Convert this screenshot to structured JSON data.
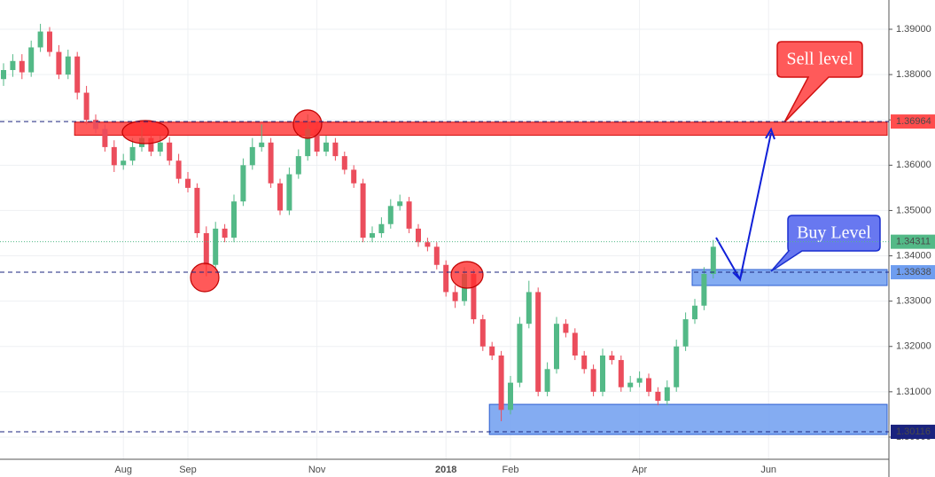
{
  "chart_data": {
    "type": "candlestick",
    "categories": [
      null,
      null,
      null,
      null,
      null,
      null,
      null,
      null,
      null,
      null,
      null,
      null,
      null,
      "Aug",
      null,
      null,
      null,
      null,
      null,
      null,
      "Sep",
      null,
      null,
      null,
      null,
      null,
      null,
      null,
      null,
      null,
      null,
      null,
      null,
      null,
      "Nov",
      null,
      null,
      null,
      null,
      null,
      null,
      null,
      null,
      null,
      null,
      null,
      null,
      null,
      "2018",
      null,
      null,
      null,
      null,
      null,
      null,
      "Feb",
      null,
      null,
      null,
      null,
      null,
      null,
      null,
      null,
      null,
      null,
      null,
      null,
      null,
      "Apr",
      null,
      null,
      null,
      null,
      null,
      null,
      null,
      null,
      null,
      null,
      null,
      null,
      null,
      "Jun"
    ],
    "open": [
      1.379,
      1.381,
      1.383,
      1.3805,
      1.386,
      1.3895,
      1.385,
      1.38,
      1.384,
      1.376,
      1.37,
      1.368,
      1.364,
      1.36,
      1.361,
      1.364,
      1.366,
      1.363,
      1.365,
      1.361,
      1.357,
      1.355,
      1.345,
      1.338,
      1.346,
      1.344,
      1.352,
      1.36,
      1.364,
      1.365,
      1.356,
      1.35,
      1.358,
      1.362,
      1.368,
      1.363,
      1.365,
      1.362,
      1.359,
      1.356,
      1.344,
      1.345,
      1.347,
      1.351,
      1.352,
      1.346,
      1.343,
      1.342,
      1.338,
      1.332,
      1.33,
      1.336,
      1.326,
      1.32,
      1.318,
      1.306,
      1.312,
      1.325,
      1.332,
      1.31,
      1.315,
      1.325,
      1.323,
      1.318,
      1.315,
      1.31,
      1.318,
      1.317,
      1.311,
      1.312,
      1.313,
      1.31,
      1.308,
      1.311,
      1.32,
      1.326,
      1.329,
      1.336,
      null,
      null,
      null,
      null,
      null,
      null
    ],
    "high": [
      1.3825,
      1.3845,
      1.3845,
      1.3875,
      1.3912,
      1.3905,
      1.3865,
      1.3855,
      1.385,
      1.3775,
      1.3712,
      1.369,
      1.3655,
      1.3625,
      1.366,
      1.3685,
      1.3675,
      1.3665,
      1.3662,
      1.3625,
      1.3585,
      1.356,
      1.3465,
      1.3475,
      1.347,
      1.3535,
      1.3615,
      1.366,
      1.369,
      1.366,
      1.357,
      1.3595,
      1.3635,
      1.3712,
      1.3695,
      1.3665,
      1.366,
      1.363,
      1.36,
      1.357,
      1.3465,
      1.3485,
      1.3525,
      1.3535,
      1.353,
      1.347,
      1.344,
      1.343,
      1.339,
      1.3335,
      1.3375,
      1.337,
      1.327,
      1.321,
      1.319,
      1.3135,
      1.3265,
      1.3345,
      1.333,
      1.3165,
      1.3265,
      1.326,
      1.324,
      1.319,
      1.316,
      1.3195,
      1.319,
      1.318,
      1.3135,
      1.3145,
      1.314,
      1.311,
      1.3125,
      1.3215,
      1.3275,
      1.3305,
      1.3375,
      1.3435,
      null,
      null,
      null,
      null,
      null,
      null
    ],
    "low": [
      1.3775,
      1.3795,
      1.379,
      1.3795,
      1.385,
      1.384,
      1.379,
      1.379,
      1.3745,
      1.369,
      1.367,
      1.363,
      1.3585,
      1.359,
      1.36,
      1.363,
      1.362,
      1.362,
      1.36,
      1.356,
      1.354,
      1.344,
      1.3355,
      1.337,
      1.343,
      1.343,
      1.351,
      1.359,
      1.363,
      1.355,
      1.349,
      1.349,
      1.357,
      1.361,
      1.362,
      1.362,
      1.361,
      1.358,
      1.355,
      1.343,
      1.343,
      1.344,
      1.346,
      1.35,
      1.345,
      1.342,
      1.341,
      1.337,
      1.331,
      1.3285,
      1.329,
      1.325,
      1.319,
      1.317,
      1.3035,
      1.305,
      1.311,
      1.324,
      1.309,
      1.309,
      1.314,
      1.322,
      1.317,
      1.314,
      1.309,
      1.309,
      1.316,
      1.31,
      1.31,
      1.311,
      1.309,
      1.307,
      1.307,
      1.31,
      1.319,
      1.325,
      1.328,
      1.335,
      null,
      null,
      null,
      null,
      null,
      null
    ],
    "close": [
      1.381,
      1.383,
      1.3805,
      1.386,
      1.3895,
      1.385,
      1.38,
      1.384,
      1.376,
      1.37,
      1.368,
      1.364,
      1.36,
      1.361,
      1.364,
      1.366,
      1.363,
      1.365,
      1.361,
      1.357,
      1.355,
      1.345,
      1.338,
      1.346,
      1.344,
      1.352,
      1.36,
      1.364,
      1.365,
      1.356,
      1.35,
      1.358,
      1.362,
      1.368,
      1.363,
      1.365,
      1.362,
      1.359,
      1.356,
      1.344,
      1.345,
      1.347,
      1.351,
      1.352,
      1.346,
      1.343,
      1.342,
      1.338,
      1.332,
      1.33,
      1.336,
      1.326,
      1.32,
      1.318,
      1.306,
      1.312,
      1.325,
      1.332,
      1.31,
      1.315,
      1.325,
      1.323,
      1.318,
      1.315,
      1.31,
      1.318,
      1.317,
      1.311,
      1.312,
      1.313,
      1.31,
      1.308,
      1.311,
      1.32,
      1.326,
      1.329,
      1.336,
      1.342,
      null,
      null,
      null,
      null,
      null,
      null
    ],
    "up_color": "#53b987",
    "down_color": "#eb4d5c",
    "ylim": [
      1.2951,
      1.39646
    ],
    "yticks": [
      {
        "value": 1.3,
        "label": "1.30000"
      },
      {
        "value": 1.31,
        "label": "1.31000"
      },
      {
        "value": 1.32,
        "label": "1.32000"
      },
      {
        "value": 1.33,
        "label": "1.33000"
      },
      {
        "value": 1.34,
        "label": "1.34000"
      },
      {
        "value": 1.35,
        "label": "1.35000"
      },
      {
        "value": 1.36,
        "label": "1.36000"
      },
      {
        "value": 1.37,
        "label": "1.37000"
      },
      {
        "value": 1.38,
        "label": "1.38000"
      },
      {
        "value": 1.39,
        "label": "1.39000"
      }
    ],
    "grid": true,
    "zones": [
      {
        "top": 1.3695,
        "bottom": 1.3666,
        "start_index": 8,
        "color": "#ff4040",
        "border": "#d01010"
      },
      {
        "top": 1.33697,
        "bottom": 1.33345,
        "start_index": 75,
        "color": "#6f9ef0",
        "border": "#2d5fd0"
      },
      {
        "top": 1.30722,
        "bottom": 1.30057,
        "start_index": 53,
        "color": "#6f9ef0",
        "border": "#2d5fd0"
      }
    ],
    "levels": [
      {
        "value": 1.36964,
        "style": "dashed",
        "color": "#1a237e",
        "box": "#ff4d4d",
        "text": "#1a237e"
      },
      {
        "value": 1.34311,
        "style": "dotted",
        "color": "#53b987",
        "box": "#53b987",
        "text": "#ffffff"
      },
      {
        "value": 1.33638,
        "style": "dashed",
        "color": "#1a237e",
        "box": "#6f9ef0",
        "text": "#1a237e"
      },
      {
        "value": 1.30116,
        "style": "dashed",
        "color": "#1a237e",
        "box": "#1a237e",
        "text": "#ffffff"
      }
    ],
    "annotations": [
      "Sell level",
      "Buy Level"
    ]
  }
}
